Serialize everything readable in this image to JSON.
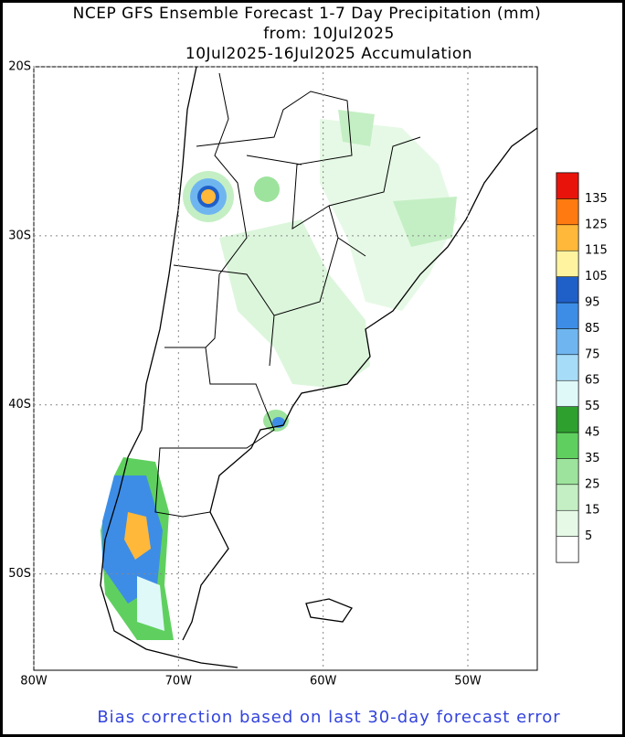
{
  "title_lines": [
    "NCEP GFS Ensemble Forecast 1-7 Day Precipitation (mm)",
    "from: 10Jul2025",
    "10Jul2025-16Jul2025 Accumulation"
  ],
  "lon_range": [
    -80,
    -45.2
  ],
  "lat_range": [
    -20,
    -55.7
  ],
  "lat_ticks": [
    {
      "value": -20,
      "label": "20S"
    },
    {
      "value": -30,
      "label": "30S"
    },
    {
      "value": -40,
      "label": "40S"
    },
    {
      "value": -50,
      "label": "50S"
    }
  ],
  "lon_ticks": [
    {
      "value": -80,
      "label": "80W"
    },
    {
      "value": -70,
      "label": "70W"
    },
    {
      "value": -60,
      "label": "60W"
    },
    {
      "value": -50,
      "label": "50W"
    }
  ],
  "legend": {
    "levels": [
      5,
      15,
      25,
      35,
      45,
      55,
      65,
      75,
      85,
      95,
      105,
      115,
      125,
      135
    ],
    "colors": [
      "#ffffff",
      "#e6f9e6",
      "#c4efc4",
      "#9de39d",
      "#5fd05f",
      "#2ea02e",
      "#dff9f9",
      "#a6dcf7",
      "#6fb6f0",
      "#3d8de6",
      "#1f5fc8",
      "#fff3a0",
      "#ffb83a",
      "#ff7a10",
      "#e8140c"
    ]
  },
  "footer": "Bias correction based on last 30-day forecast error"
}
